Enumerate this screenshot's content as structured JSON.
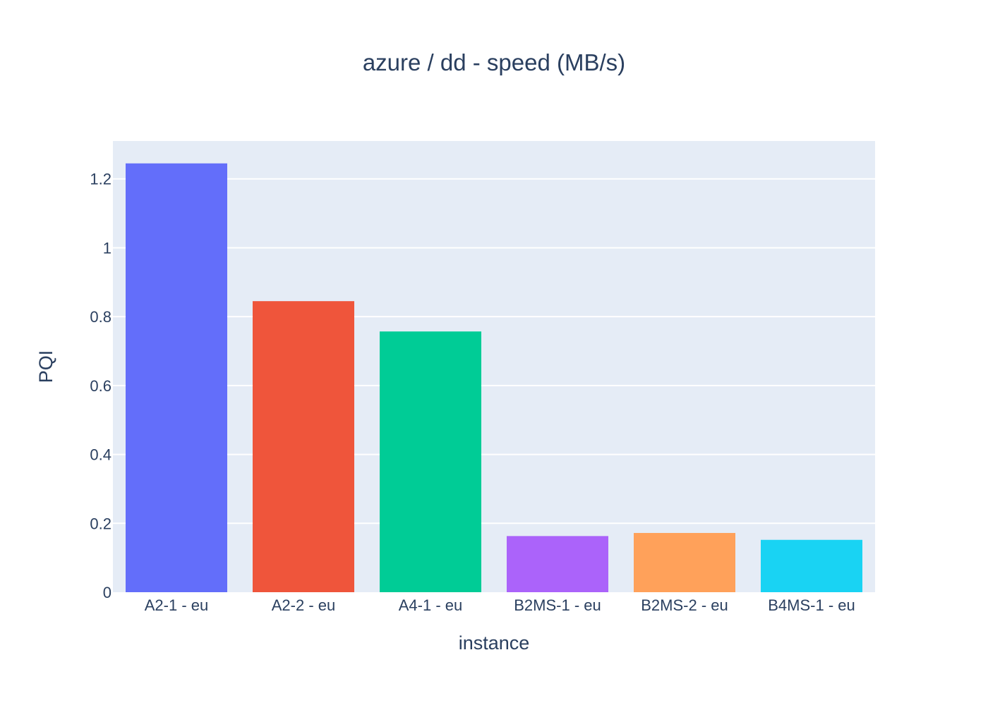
{
  "chart_data": {
    "type": "bar",
    "title": "azure / dd - speed (MB/s)",
    "xlabel": "instance",
    "ylabel": "PQI",
    "categories": [
      "A2-1 - eu",
      "A2-2 - eu",
      "A4-1 - eu",
      "B2MS-1 - eu",
      "B2MS-2 - eu",
      "B4MS-1 - eu"
    ],
    "values": [
      1.245,
      0.845,
      0.757,
      0.163,
      0.172,
      0.152
    ],
    "colors": [
      "#636efa",
      "#ef553b",
      "#00cc96",
      "#ab63fa",
      "#ffa15a",
      "#19d3f3"
    ],
    "ylim": [
      0,
      1.31
    ],
    "yticks": [
      0,
      0.2,
      0.4,
      0.6,
      0.8,
      1,
      1.2
    ],
    "ytick_labels": [
      "0",
      "0.2",
      "0.4",
      "0.6",
      "0.8",
      "1",
      "1.2"
    ],
    "grid": true,
    "plot_background": "#e5ecf6",
    "gridline_color": "#ffffff",
    "text_color": "#2a3f5f",
    "legend": "none"
  }
}
